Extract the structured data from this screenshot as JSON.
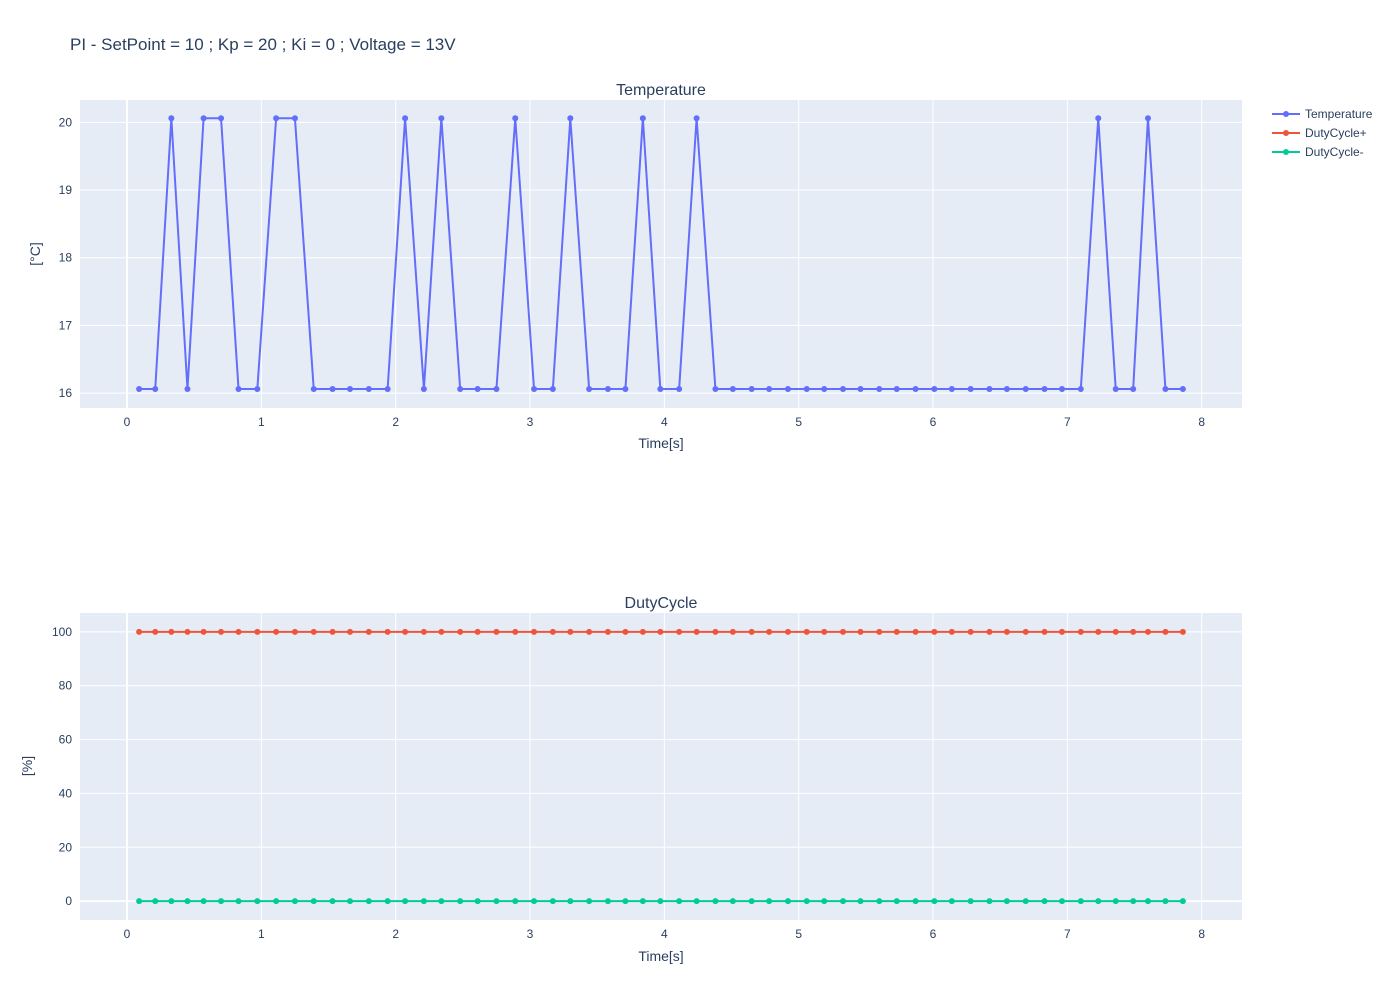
{
  "title": "PI - SetPoint = 10 ; Kp = 20 ; Ki = 0 ; Voltage = 13V",
  "colors": {
    "plot_bg": "#E5ECF6",
    "grid": "#FFFFFF",
    "text": "#2A3F5F",
    "temperature": "#636EFA",
    "duty_plus": "#EF553B",
    "duty_minus": "#00CC96"
  },
  "legend": {
    "placement": "top-right",
    "items": [
      {
        "name": "Temperature",
        "color_key": "temperature"
      },
      {
        "name": "DutyCycle+",
        "color_key": "duty_plus"
      },
      {
        "name": "DutyCycle-",
        "color_key": "duty_minus"
      }
    ]
  },
  "chart_data": [
    {
      "type": "line",
      "title": "Temperature",
      "xlabel": "Time[s]",
      "ylabel": "[°C]",
      "xlim": [
        -0.35,
        8.3
      ],
      "ylim": [
        15.78,
        20.33
      ],
      "xticks": [
        0,
        1,
        2,
        3,
        4,
        5,
        6,
        7,
        8
      ],
      "yticks": [
        16,
        17,
        18,
        19,
        20
      ],
      "grid": true,
      "series": [
        {
          "name": "Temperature",
          "color_key": "temperature",
          "points": [
            [
              0.09,
              16.06
            ],
            [
              0.21,
              16.06
            ],
            [
              0.33,
              20.06
            ],
            [
              0.45,
              16.06
            ],
            [
              0.57,
              20.06
            ],
            [
              0.7,
              20.06
            ],
            [
              0.83,
              16.06
            ],
            [
              0.97,
              16.06
            ],
            [
              1.11,
              20.06
            ],
            [
              1.25,
              20.06
            ],
            [
              1.39,
              16.06
            ],
            [
              1.53,
              16.06
            ],
            [
              1.66,
              16.06
            ],
            [
              1.8,
              16.06
            ],
            [
              1.94,
              16.06
            ],
            [
              2.07,
              20.06
            ],
            [
              2.21,
              16.06
            ],
            [
              2.34,
              20.06
            ],
            [
              2.48,
              16.06
            ],
            [
              2.61,
              16.06
            ],
            [
              2.75,
              16.06
            ],
            [
              2.89,
              20.06
            ],
            [
              3.03,
              16.06
            ],
            [
              3.17,
              16.06
            ],
            [
              3.3,
              20.06
            ],
            [
              3.44,
              16.06
            ],
            [
              3.58,
              16.06
            ],
            [
              3.71,
              16.06
            ],
            [
              3.84,
              20.06
            ],
            [
              3.97,
              16.06
            ],
            [
              4.11,
              16.06
            ],
            [
              4.24,
              20.06
            ],
            [
              4.38,
              16.06
            ],
            [
              4.51,
              16.06
            ],
            [
              4.65,
              16.06
            ],
            [
              4.78,
              16.06
            ],
            [
              4.92,
              16.06
            ],
            [
              5.06,
              16.06
            ],
            [
              5.19,
              16.06
            ],
            [
              5.33,
              16.06
            ],
            [
              5.46,
              16.06
            ],
            [
              5.6,
              16.06
            ],
            [
              5.73,
              16.06
            ],
            [
              5.87,
              16.06
            ],
            [
              6.01,
              16.06
            ],
            [
              6.14,
              16.06
            ],
            [
              6.28,
              16.06
            ],
            [
              6.42,
              16.06
            ],
            [
              6.55,
              16.06
            ],
            [
              6.69,
              16.06
            ],
            [
              6.83,
              16.06
            ],
            [
              6.96,
              16.06
            ],
            [
              7.1,
              16.06
            ],
            [
              7.23,
              20.06
            ],
            [
              7.36,
              16.06
            ],
            [
              7.49,
              16.06
            ],
            [
              7.6,
              20.06
            ],
            [
              7.73,
              16.06
            ],
            [
              7.86,
              16.06
            ]
          ]
        }
      ]
    },
    {
      "type": "line",
      "title": "DutyCycle",
      "xlabel": "Time[s]",
      "ylabel": "[%]",
      "xlim": [
        -0.35,
        8.3
      ],
      "ylim": [
        -7,
        107
      ],
      "xticks": [
        0,
        1,
        2,
        3,
        4,
        5,
        6,
        7,
        8
      ],
      "yticks": [
        0,
        20,
        40,
        60,
        80,
        100
      ],
      "grid": true,
      "series": [
        {
          "name": "DutyCycle+",
          "color_key": "duty_plus",
          "x": [
            0.09,
            0.21,
            0.33,
            0.45,
            0.57,
            0.7,
            0.83,
            0.97,
            1.11,
            1.25,
            1.39,
            1.53,
            1.66,
            1.8,
            1.94,
            2.07,
            2.21,
            2.34,
            2.48,
            2.61,
            2.75,
            2.89,
            3.03,
            3.17,
            3.3,
            3.44,
            3.58,
            3.71,
            3.84,
            3.97,
            4.11,
            4.24,
            4.38,
            4.51,
            4.65,
            4.78,
            4.92,
            5.06,
            5.19,
            5.33,
            5.46,
            5.6,
            5.73,
            5.87,
            6.01,
            6.14,
            6.28,
            6.42,
            6.55,
            6.69,
            6.83,
            6.96,
            7.1,
            7.23,
            7.36,
            7.49,
            7.6,
            7.73,
            7.86
          ],
          "y": 100
        },
        {
          "name": "DutyCycle-",
          "color_key": "duty_minus",
          "x": [
            0.09,
            0.21,
            0.33,
            0.45,
            0.57,
            0.7,
            0.83,
            0.97,
            1.11,
            1.25,
            1.39,
            1.53,
            1.66,
            1.8,
            1.94,
            2.07,
            2.21,
            2.34,
            2.48,
            2.61,
            2.75,
            2.89,
            3.03,
            3.17,
            3.3,
            3.44,
            3.58,
            3.71,
            3.84,
            3.97,
            4.11,
            4.24,
            4.38,
            4.51,
            4.65,
            4.78,
            4.92,
            5.06,
            5.19,
            5.33,
            5.46,
            5.6,
            5.73,
            5.87,
            6.01,
            6.14,
            6.28,
            6.42,
            6.55,
            6.69,
            6.83,
            6.96,
            7.1,
            7.23,
            7.36,
            7.49,
            7.6,
            7.73,
            7.86
          ],
          "y": 0
        }
      ]
    }
  ]
}
